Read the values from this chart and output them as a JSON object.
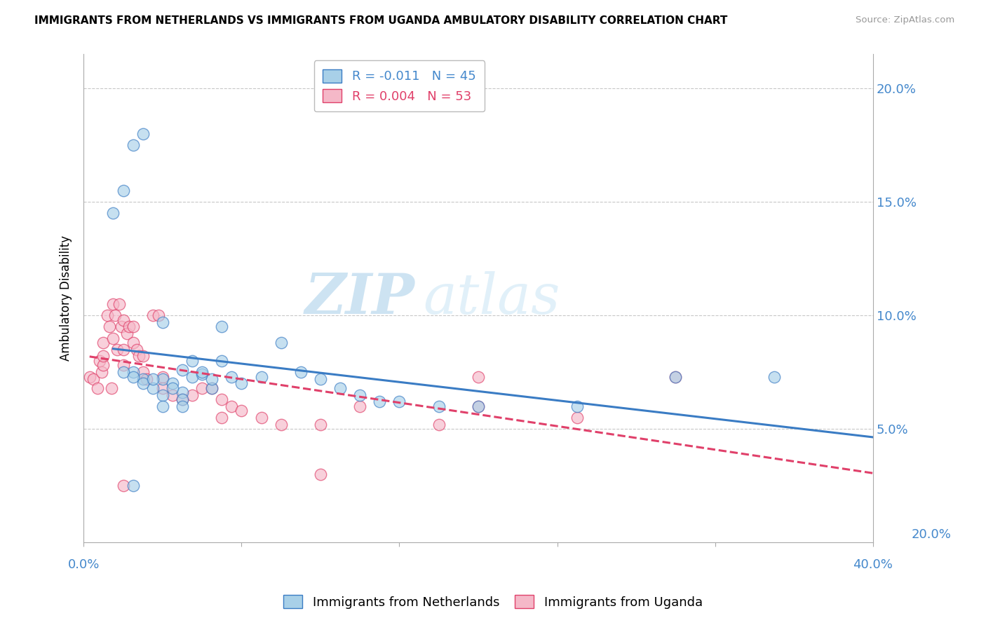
{
  "title": "IMMIGRANTS FROM NETHERLANDS VS IMMIGRANTS FROM UGANDA AMBULATORY DISABILITY CORRELATION CHART",
  "source": "Source: ZipAtlas.com",
  "ylabel": "Ambulatory Disability",
  "ytick_values": [
    0.05,
    0.1,
    0.15,
    0.2
  ],
  "xlim": [
    0.0,
    0.4
  ],
  "ylim": [
    0.0,
    0.215
  ],
  "legend_entry1": "R = -0.011   N = 45",
  "legend_entry2": "R = 0.004   N = 53",
  "color_netherlands": "#a8d0e8",
  "color_uganda": "#f5b8c8",
  "trendline_netherlands_color": "#3a7cc4",
  "trendline_uganda_color": "#e0406a",
  "watermark_zip": "ZIP",
  "watermark_atlas": "atlas",
  "netherlands_x": [
    0.025,
    0.03,
    0.035,
    0.04,
    0.04,
    0.045,
    0.05,
    0.05,
    0.055,
    0.06,
    0.065,
    0.07,
    0.02,
    0.025,
    0.03,
    0.035,
    0.04,
    0.045,
    0.05,
    0.055,
    0.06,
    0.065,
    0.07,
    0.075,
    0.08,
    0.09,
    0.1,
    0.11,
    0.12,
    0.13,
    0.14,
    0.15,
    0.16,
    0.18,
    0.2,
    0.25,
    0.35,
    0.015,
    0.02,
    0.025,
    0.03,
    0.04,
    0.05,
    0.3,
    0.025
  ],
  "netherlands_y": [
    0.075,
    0.072,
    0.068,
    0.065,
    0.072,
    0.07,
    0.066,
    0.076,
    0.073,
    0.074,
    0.068,
    0.095,
    0.075,
    0.073,
    0.07,
    0.072,
    0.097,
    0.068,
    0.063,
    0.08,
    0.075,
    0.072,
    0.08,
    0.073,
    0.07,
    0.073,
    0.088,
    0.075,
    0.072,
    0.068,
    0.065,
    0.062,
    0.062,
    0.06,
    0.06,
    0.06,
    0.073,
    0.145,
    0.155,
    0.175,
    0.18,
    0.06,
    0.06,
    0.073,
    0.025
  ],
  "uganda_x": [
    0.003,
    0.005,
    0.007,
    0.008,
    0.009,
    0.01,
    0.01,
    0.01,
    0.012,
    0.013,
    0.014,
    0.015,
    0.015,
    0.016,
    0.017,
    0.018,
    0.019,
    0.02,
    0.02,
    0.02,
    0.022,
    0.023,
    0.025,
    0.025,
    0.027,
    0.028,
    0.03,
    0.03,
    0.032,
    0.035,
    0.038,
    0.04,
    0.04,
    0.045,
    0.05,
    0.055,
    0.06,
    0.065,
    0.07,
    0.075,
    0.08,
    0.09,
    0.1,
    0.12,
    0.14,
    0.18,
    0.2,
    0.25,
    0.3,
    0.07,
    0.12,
    0.2,
    0.02
  ],
  "uganda_y": [
    0.073,
    0.072,
    0.068,
    0.08,
    0.075,
    0.078,
    0.082,
    0.088,
    0.1,
    0.095,
    0.068,
    0.105,
    0.09,
    0.1,
    0.085,
    0.105,
    0.095,
    0.098,
    0.085,
    0.078,
    0.092,
    0.095,
    0.095,
    0.088,
    0.085,
    0.082,
    0.082,
    0.075,
    0.072,
    0.1,
    0.1,
    0.073,
    0.068,
    0.065,
    0.063,
    0.065,
    0.068,
    0.068,
    0.063,
    0.06,
    0.058,
    0.055,
    0.052,
    0.052,
    0.06,
    0.052,
    0.06,
    0.055,
    0.073,
    0.055,
    0.03,
    0.073,
    0.025
  ]
}
